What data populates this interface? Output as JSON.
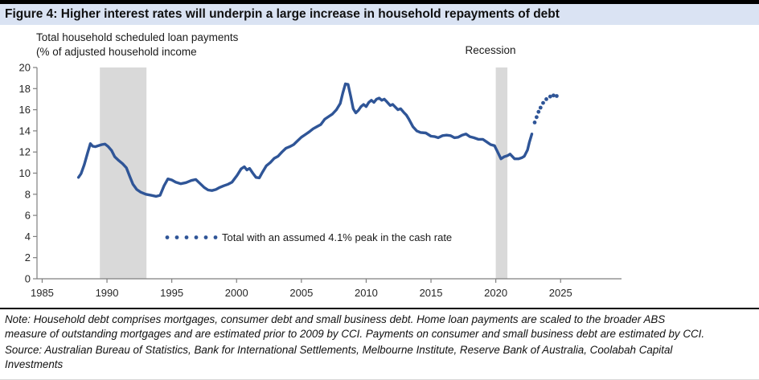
{
  "colors": {
    "accent_line": "#2F5597",
    "title_bar_bg": "#DAE3F3",
    "recession_band": "#D9D9D9",
    "axis": "#7F7F7F"
  },
  "note": {
    "line1": "Note: Household debt comprises mortgages, consumer debt and small business debt.  Home loan payments are scaled to the broader ABS",
    "line2": "measure of outstanding mortgages and are estimated prior to 2009 by CCI. Payments on consumer and small business debt are estimated by CCI."
  },
  "source": {
    "line1": "Source: Australian Bureau of Statistics, Bank for International Settlements, Melbourne Institute, Reserve Bank of Australia, Coolabah Capital",
    "line2": "Investments"
  },
  "chart_data": {
    "type": "line",
    "title": "Figure 4: Higher interest rates will underpin a large increase in household repayments of debt",
    "subtitle_lines": [
      "Total household scheduled loan payments",
      "(% of adjusted household income"
    ],
    "xlabel": "",
    "ylabel": "% of adjusted household income",
    "xlim": [
      1984.6,
      2029.7
    ],
    "ylim": [
      0,
      20
    ],
    "x_ticks": [
      1985,
      1990,
      1995,
      2000,
      2005,
      2010,
      2015,
      2020,
      2025
    ],
    "y_ticks": [
      0,
      2,
      4,
      6,
      8,
      10,
      12,
      14,
      16,
      18,
      20
    ],
    "grid": false,
    "legend_position": "inside-lower-center",
    "recession_bands": [
      [
        1989.45,
        1993.05
      ],
      [
        2020.0,
        2020.9
      ]
    ],
    "annotations": [
      {
        "text": "Recession",
        "x": 2019.6,
        "y": 21.3
      }
    ],
    "series": [
      {
        "name": "Total household scheduled loan payments",
        "style": "solid",
        "color": "#2F5597",
        "points": [
          [
            1987.8,
            9.6
          ],
          [
            1988.0,
            9.95
          ],
          [
            1988.25,
            10.8
          ],
          [
            1988.5,
            11.9
          ],
          [
            1988.72,
            12.8
          ],
          [
            1988.9,
            12.55
          ],
          [
            1989.1,
            12.5
          ],
          [
            1989.35,
            12.6
          ],
          [
            1989.6,
            12.7
          ],
          [
            1989.85,
            12.75
          ],
          [
            1990.1,
            12.5
          ],
          [
            1990.35,
            12.15
          ],
          [
            1990.6,
            11.55
          ],
          [
            1990.9,
            11.2
          ],
          [
            1991.2,
            10.9
          ],
          [
            1991.5,
            10.5
          ],
          [
            1991.75,
            9.7
          ],
          [
            1992.0,
            8.95
          ],
          [
            1992.3,
            8.45
          ],
          [
            1992.6,
            8.2
          ],
          [
            1993.0,
            8.0
          ],
          [
            1993.4,
            7.9
          ],
          [
            1993.8,
            7.8
          ],
          [
            1994.1,
            7.9
          ],
          [
            1994.4,
            8.8
          ],
          [
            1994.7,
            9.45
          ],
          [
            1995.0,
            9.35
          ],
          [
            1995.3,
            9.15
          ],
          [
            1995.7,
            9.0
          ],
          [
            1996.1,
            9.1
          ],
          [
            1996.5,
            9.3
          ],
          [
            1996.85,
            9.4
          ],
          [
            1997.2,
            9.0
          ],
          [
            1997.5,
            8.65
          ],
          [
            1997.8,
            8.4
          ],
          [
            1998.1,
            8.35
          ],
          [
            1998.4,
            8.45
          ],
          [
            1998.7,
            8.65
          ],
          [
            1999.0,
            8.8
          ],
          [
            1999.35,
            8.95
          ],
          [
            1999.65,
            9.15
          ],
          [
            2000.05,
            9.8
          ],
          [
            2000.35,
            10.4
          ],
          [
            2000.6,
            10.6
          ],
          [
            2000.8,
            10.3
          ],
          [
            2001.0,
            10.45
          ],
          [
            2001.25,
            10.0
          ],
          [
            2001.5,
            9.6
          ],
          [
            2001.75,
            9.55
          ],
          [
            2002.0,
            10.1
          ],
          [
            2002.3,
            10.7
          ],
          [
            2002.6,
            11.0
          ],
          [
            2002.9,
            11.4
          ],
          [
            2003.2,
            11.6
          ],
          [
            2003.5,
            12.0
          ],
          [
            2003.8,
            12.35
          ],
          [
            2004.1,
            12.5
          ],
          [
            2004.4,
            12.7
          ],
          [
            2004.7,
            13.05
          ],
          [
            2005.0,
            13.4
          ],
          [
            2005.3,
            13.65
          ],
          [
            2005.6,
            13.9
          ],
          [
            2005.9,
            14.2
          ],
          [
            2006.2,
            14.4
          ],
          [
            2006.5,
            14.6
          ],
          [
            2006.8,
            15.1
          ],
          [
            2007.1,
            15.35
          ],
          [
            2007.4,
            15.6
          ],
          [
            2007.7,
            16.0
          ],
          [
            2008.0,
            16.6
          ],
          [
            2008.2,
            17.6
          ],
          [
            2008.4,
            18.45
          ],
          [
            2008.6,
            18.4
          ],
          [
            2008.8,
            17.3
          ],
          [
            2009.0,
            16.1
          ],
          [
            2009.2,
            15.7
          ],
          [
            2009.4,
            15.95
          ],
          [
            2009.6,
            16.3
          ],
          [
            2009.8,
            16.5
          ],
          [
            2010.0,
            16.3
          ],
          [
            2010.2,
            16.7
          ],
          [
            2010.4,
            16.9
          ],
          [
            2010.6,
            16.7
          ],
          [
            2010.8,
            17.0
          ],
          [
            2011.0,
            17.1
          ],
          [
            2011.2,
            16.9
          ],
          [
            2011.4,
            17.0
          ],
          [
            2011.6,
            16.75
          ],
          [
            2011.85,
            16.4
          ],
          [
            2012.05,
            16.5
          ],
          [
            2012.25,
            16.25
          ],
          [
            2012.45,
            16.0
          ],
          [
            2012.65,
            16.1
          ],
          [
            2012.9,
            15.75
          ],
          [
            2013.1,
            15.5
          ],
          [
            2013.3,
            15.1
          ],
          [
            2013.6,
            14.4
          ],
          [
            2013.9,
            14.0
          ],
          [
            2014.2,
            13.85
          ],
          [
            2014.6,
            13.8
          ],
          [
            2015.0,
            13.5
          ],
          [
            2015.3,
            13.45
          ],
          [
            2015.55,
            13.35
          ],
          [
            2015.9,
            13.55
          ],
          [
            2016.2,
            13.6
          ],
          [
            2016.5,
            13.55
          ],
          [
            2016.8,
            13.35
          ],
          [
            2017.1,
            13.4
          ],
          [
            2017.4,
            13.6
          ],
          [
            2017.7,
            13.7
          ],
          [
            2018.0,
            13.45
          ],
          [
            2018.3,
            13.35
          ],
          [
            2018.65,
            13.2
          ],
          [
            2019.0,
            13.2
          ],
          [
            2019.3,
            12.95
          ],
          [
            2019.6,
            12.7
          ],
          [
            2019.9,
            12.6
          ],
          [
            2020.1,
            12.1
          ],
          [
            2020.4,
            11.35
          ],
          [
            2020.65,
            11.55
          ],
          [
            2020.9,
            11.65
          ],
          [
            2021.1,
            11.8
          ],
          [
            2021.45,
            11.35
          ],
          [
            2021.75,
            11.35
          ],
          [
            2022.0,
            11.45
          ],
          [
            2022.2,
            11.6
          ],
          [
            2022.45,
            12.2
          ],
          [
            2022.6,
            12.95
          ],
          [
            2022.78,
            13.7
          ]
        ]
      },
      {
        "name": "Total with an assumed 4.1% peak in the cash rate",
        "style": "dotted",
        "color": "#2F5597",
        "points": [
          [
            2023.0,
            14.8
          ],
          [
            2023.15,
            15.3
          ],
          [
            2023.3,
            15.8
          ],
          [
            2023.45,
            16.2
          ],
          [
            2023.65,
            16.65
          ],
          [
            2023.9,
            17.0
          ],
          [
            2024.2,
            17.25
          ],
          [
            2024.45,
            17.35
          ],
          [
            2024.7,
            17.3
          ]
        ]
      }
    ]
  }
}
